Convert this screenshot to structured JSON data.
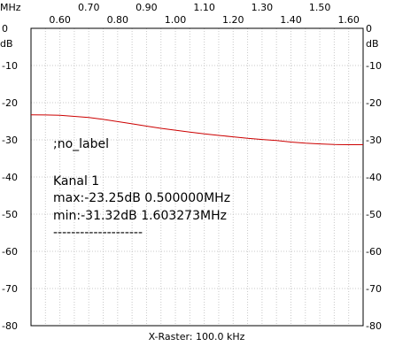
{
  "chart_data": {
    "type": "line",
    "x_unit": "MHz",
    "y_unit": "dB",
    "xlim": [
      0.5,
      1.65
    ],
    "ylim": [
      -80,
      0
    ],
    "x_ticks_top": [
      {
        "value": 0.7,
        "label": "0.70"
      },
      {
        "value": 0.9,
        "label": "0.90"
      },
      {
        "value": 1.1,
        "label": "1.10"
      },
      {
        "value": 1.3,
        "label": "1.30"
      },
      {
        "value": 1.5,
        "label": "1.50"
      }
    ],
    "x_ticks_bottom": [
      {
        "value": 0.6,
        "label": "0.60"
      },
      {
        "value": 0.8,
        "label": "0.80"
      },
      {
        "value": 1.0,
        "label": "1.00"
      },
      {
        "value": 1.2,
        "label": "1.20"
      },
      {
        "value": 1.4,
        "label": "1.40"
      },
      {
        "value": 1.6,
        "label": "1.60"
      }
    ],
    "y_ticks": [
      {
        "value": 0,
        "label": "0"
      },
      {
        "value": -10,
        "label": "-10"
      },
      {
        "value": -20,
        "label": "-20"
      },
      {
        "value": -30,
        "label": "-30"
      },
      {
        "value": -40,
        "label": "-40"
      },
      {
        "value": -50,
        "label": "-50"
      },
      {
        "value": -60,
        "label": "-60"
      },
      {
        "value": -70,
        "label": "-70"
      },
      {
        "value": -80,
        "label": "-80"
      }
    ],
    "grid": true,
    "series": [
      {
        "color": "#cc0000",
        "x": [
          0.5,
          0.55,
          0.6,
          0.65,
          0.7,
          0.75,
          0.8,
          0.85,
          0.9,
          0.95,
          1.0,
          1.05,
          1.1,
          1.15,
          1.2,
          1.25,
          1.3,
          1.35,
          1.4,
          1.45,
          1.5,
          1.55,
          1.603273,
          1.65
        ],
        "y": [
          -23.25,
          -23.3,
          -23.4,
          -23.7,
          -24.0,
          -24.5,
          -25.1,
          -25.7,
          -26.3,
          -26.9,
          -27.4,
          -27.9,
          -28.4,
          -28.8,
          -29.2,
          -29.6,
          -29.9,
          -30.2,
          -30.6,
          -30.9,
          -31.1,
          -31.25,
          -31.32,
          -31.3
        ]
      }
    ],
    "annotations": [
      ";no_label",
      "Kanal 1",
      "max:-23.25dB 0.500000MHz",
      "min:-31.32dB 1.603273MHz",
      "--------------------"
    ],
    "footer": "X-Raster: 100.0 kHz"
  },
  "colors": {
    "grid": "#c8c8c8",
    "frame": "#000000",
    "trace": "#cc0000"
  }
}
